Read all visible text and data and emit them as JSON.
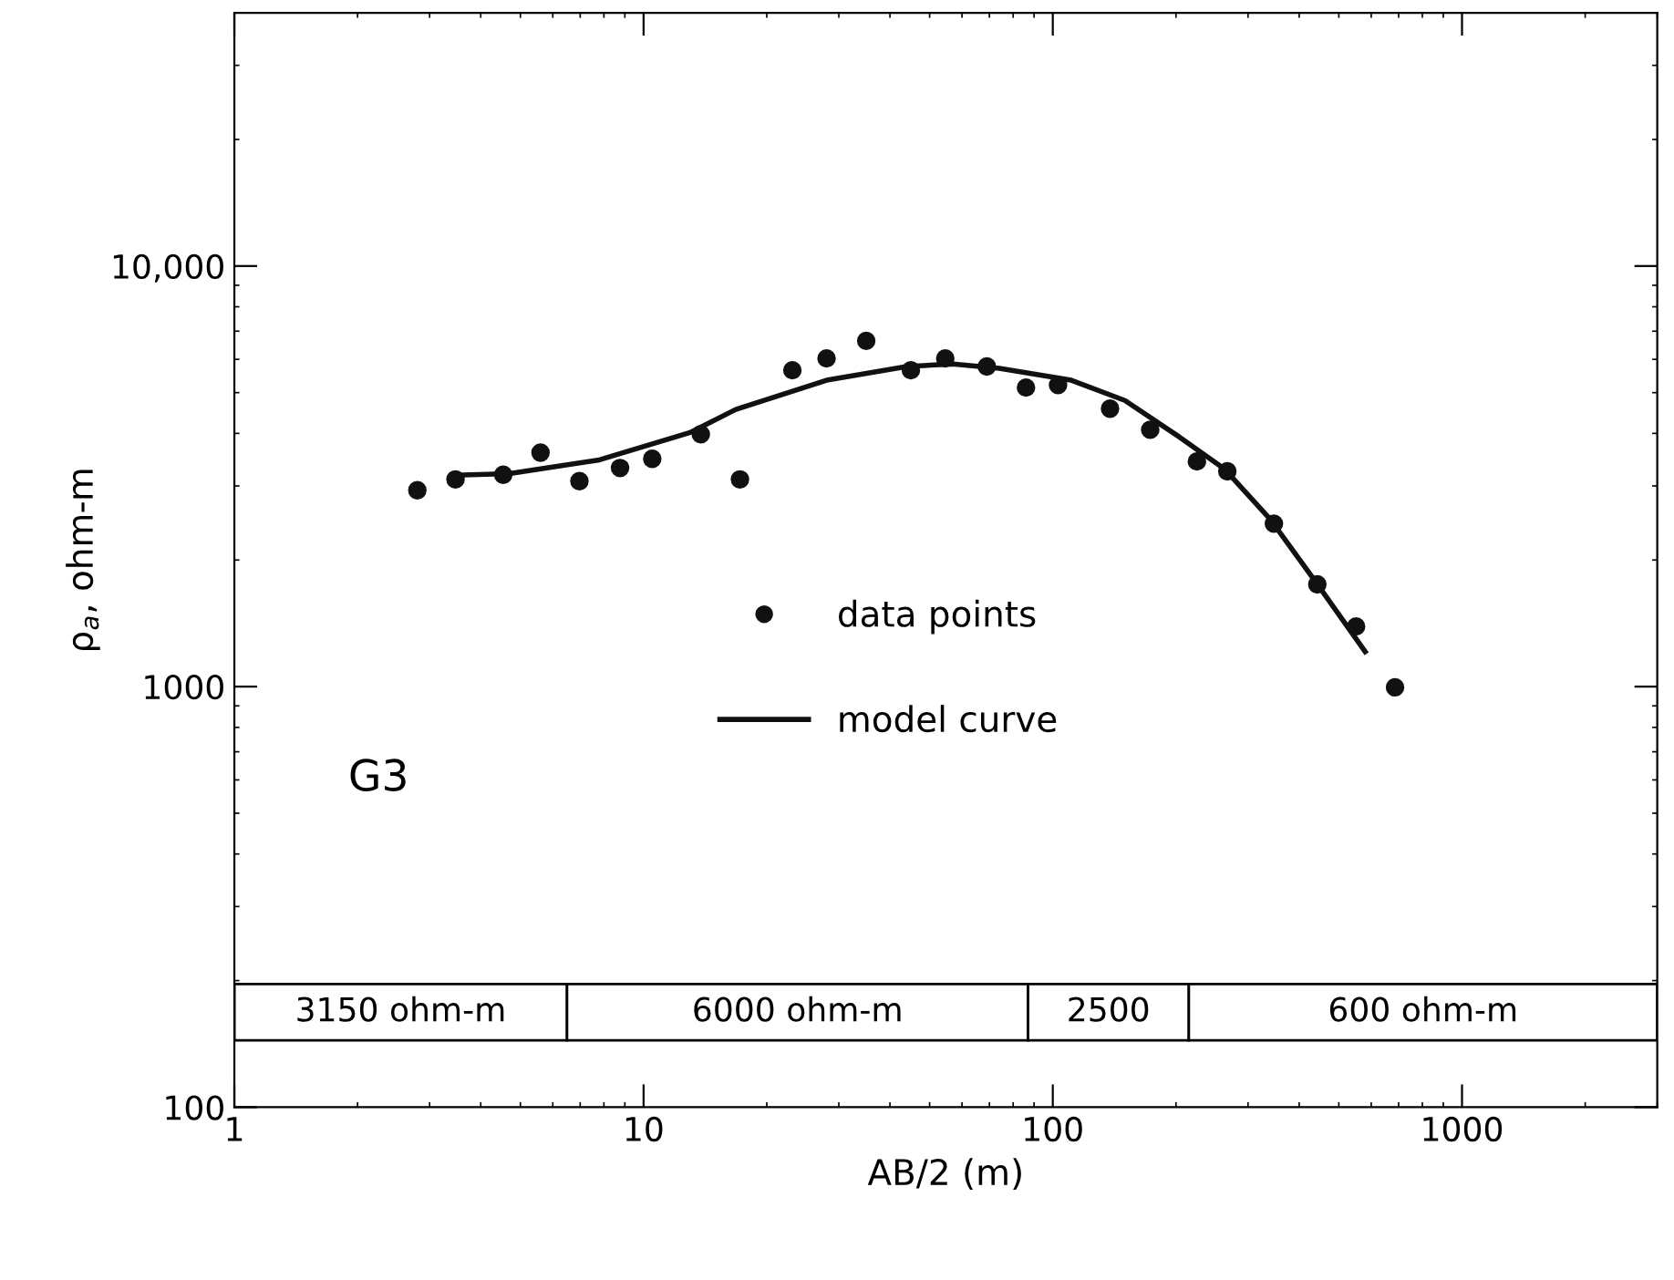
{
  "chart_data": {
    "type": "scatter",
    "xlabel": "AB/2 (m)",
    "ylabel": "ρ$_{a}$, ohm-m",
    "log": "xy",
    "xlim": [
      1,
      3000
    ],
    "ylim": [
      100,
      40000
    ],
    "xticks": [
      1,
      10,
      100,
      1000
    ],
    "yticks": [
      100,
      1000,
      {
        "value": 10000,
        "label": "10,000"
      }
    ],
    "grid": false,
    "legend": "center",
    "annotations": [
      "G3"
    ],
    "bands": [
      {
        "axis": "x",
        "from": 1,
        "to": 6.5,
        "label": "3150 ohm-m",
        "color": "#ffffff"
      },
      {
        "axis": "x",
        "from": 6.5,
        "to": 87,
        "label": "6000 ohm-m",
        "color": "#ffffff"
      },
      {
        "axis": "x",
        "from": 87,
        "to": 215,
        "label": "2500",
        "color": "#ffffff"
      },
      {
        "axis": "x",
        "from": 215,
        "to": 3000,
        "label": "600 ohm-m",
        "color": "#ffffff"
      }
    ],
    "series": [
      {
        "name": "data points",
        "marker": "circle",
        "color": "#111111",
        "x": [
          2.8,
          3.47,
          4.54,
          5.6,
          6.97,
          8.76,
          10.5,
          13.8,
          17.2,
          23.1,
          28,
          35,
          45,
          54.6,
          69,
          86,
          103,
          138,
          173,
          225,
          267,
          347,
          443,
          551,
          686
        ],
        "values": [
          2930,
          3110,
          3190,
          3600,
          3080,
          3310,
          3480,
          3980,
          3110,
          5650,
          6030,
          6640,
          5650,
          6030,
          5770,
          5140,
          5210,
          4580,
          4080,
          3430,
          3250,
          2440,
          1750,
          1390,
          996
        ]
      },
      {
        "name": "model curve",
        "type": "line",
        "marker": "none",
        "color": "#111111",
        "x": [
          3.47,
          4.7,
          7.8,
          13,
          16.8,
          28,
          44,
          57,
          74,
          111,
          150,
          204,
          263,
          340,
          438,
          580
        ],
        "values": [
          3180,
          3210,
          3460,
          4020,
          4560,
          5350,
          5770,
          5850,
          5710,
          5350,
          4790,
          3920,
          3290,
          2500,
          1780,
          1210
        ]
      }
    ]
  }
}
